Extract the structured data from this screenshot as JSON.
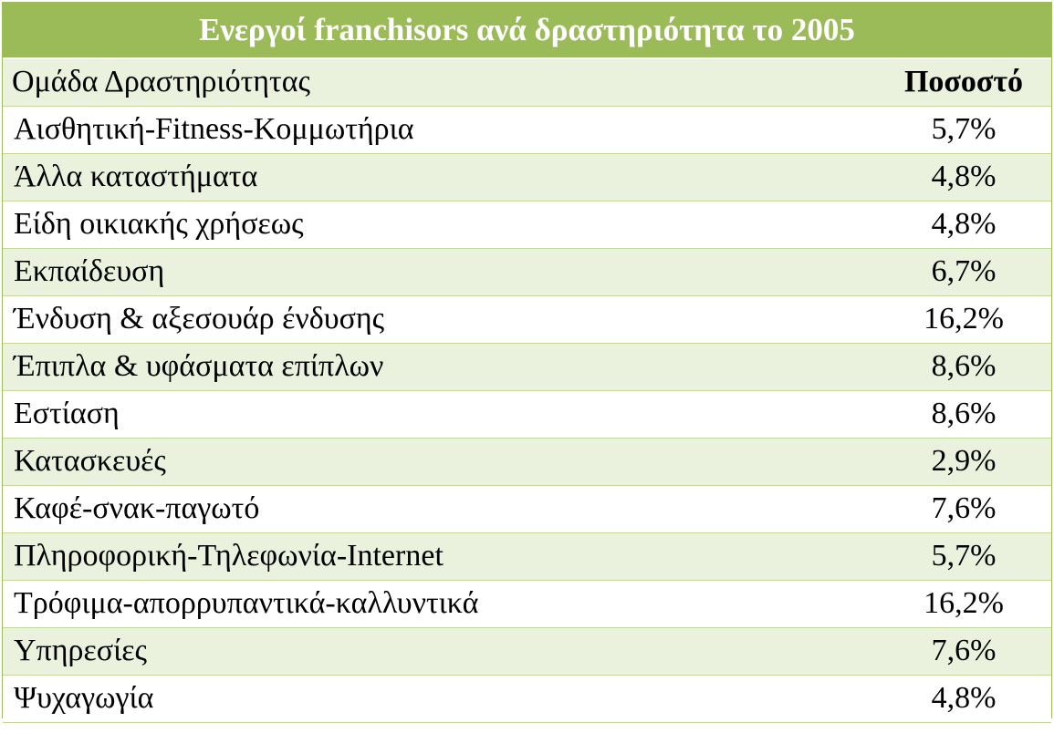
{
  "table": {
    "title": "Ενεργοί franchisors ανά δραστηριότητα το 2005",
    "headers": {
      "group": "Ομάδα Δραστηριότητας",
      "percent": "Ποσοστό"
    },
    "rows": [
      {
        "group": "Αισθητική-Fitness-Κομμωτήρια",
        "percent": "5,7%"
      },
      {
        "group": "Άλλα καταστήματα",
        "percent": "4,8%"
      },
      {
        "group": "Είδη οικιακής χρήσεως",
        "percent": "4,8%"
      },
      {
        "group": "Εκπαίδευση",
        "percent": "6,7%"
      },
      {
        "group": "Ένδυση & αξεσουάρ ένδυσης",
        "percent": "16,2%"
      },
      {
        "group": "Έπιπλα & υφάσματα επίπλων",
        "percent": "8,6%"
      },
      {
        "group": "Εστίαση",
        "percent": "8,6%"
      },
      {
        "group": "Κατασκευές",
        "percent": "2,9%"
      },
      {
        "group": "Καφέ-σνακ-παγωτό",
        "percent": "7,6%"
      },
      {
        "group": "Πληροφορική-Τηλεφωνία-Internet",
        "percent": "5,7%"
      },
      {
        "group": "Τρόφιμα-απορρυπαντικά-καλλυντικά",
        "percent": "16,2%"
      },
      {
        "group": "Υπηρεσίες",
        "percent": "7,6%"
      },
      {
        "group": "Ψυχαγωγία",
        "percent": "4,8%"
      }
    ]
  },
  "colors": {
    "header_green": "#9bbb59",
    "band_light_green": "#eaf1dd",
    "border_green": "#c3d69b"
  }
}
